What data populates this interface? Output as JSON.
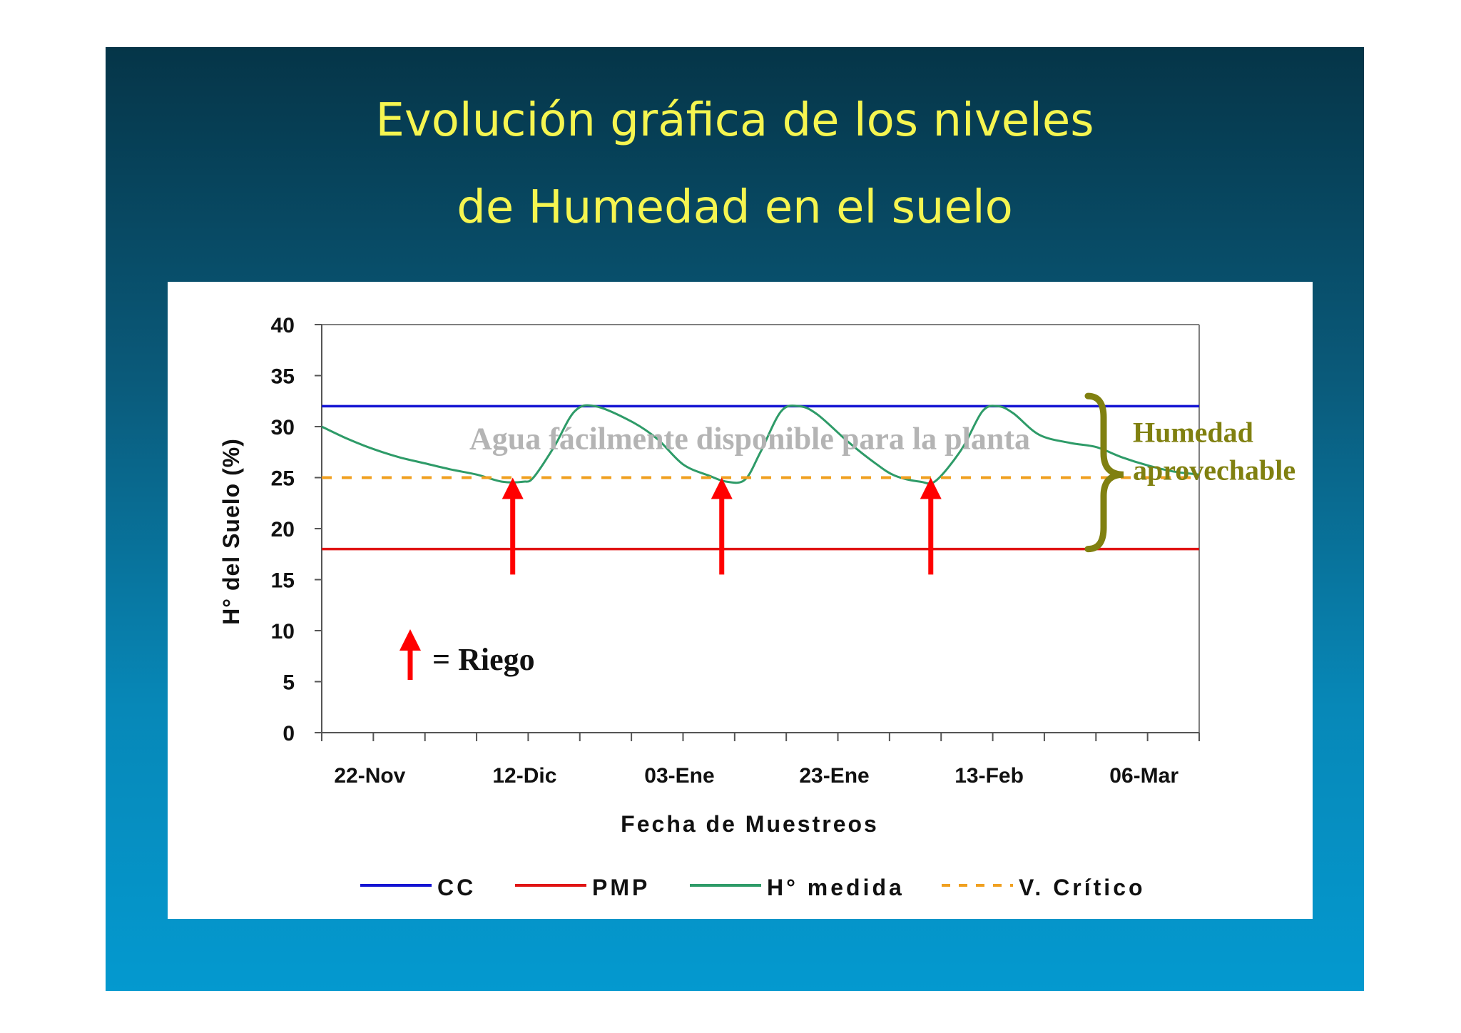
{
  "slide": {
    "title_line1": "Evolución gráfica de los niveles",
    "title_line2": "de Humedad en el suelo"
  },
  "chart_data": {
    "type": "line",
    "ylabel": "H° del Suelo (%)",
    "xlabel": "Fecha de Muestreos",
    "ylim": [
      0,
      40
    ],
    "y_ticks": [
      0,
      5,
      10,
      15,
      20,
      25,
      30,
      35,
      40
    ],
    "x_tick_labels": [
      "22-Nov",
      "12-Dic",
      "03-Ene",
      "23-Ene",
      "13-Feb",
      "06-Mar"
    ],
    "x_tick_label_index": [
      1,
      4,
      7,
      10,
      13,
      16
    ],
    "x_domain": [
      0,
      17
    ],
    "grid": false,
    "legend_position": "bottom",
    "series": [
      {
        "name": "CC",
        "color": "#1414d2",
        "style": "solid",
        "x": [
          0,
          17
        ],
        "y": [
          32,
          32
        ]
      },
      {
        "name": "PMP",
        "color": "#e01414",
        "style": "solid",
        "x": [
          0,
          17
        ],
        "y": [
          18,
          18
        ]
      },
      {
        "name": "H° medida",
        "color": "#2e9b68",
        "style": "solid",
        "x": [
          0,
          0.5,
          1,
          1.5,
          2,
          2.5,
          3,
          3.5,
          3.9,
          4.1,
          4.5,
          4.9,
          5.3,
          6,
          6.5,
          7,
          7.5,
          7.85,
          8.2,
          8.5,
          8.9,
          9.25,
          9.6,
          10.2,
          10.7,
          11.1,
          11.6,
          11.9,
          12.4,
          12.8,
          13.1,
          13.4,
          13.9,
          14.5,
          15,
          15.5,
          16,
          16.5,
          17
        ],
        "y": [
          30,
          28.8,
          27.8,
          27,
          26.4,
          25.8,
          25.3,
          24.6,
          24.6,
          25,
          28,
          31.5,
          32,
          30.5,
          28.8,
          26.3,
          25.2,
          24.6,
          24.8,
          27.5,
          31.5,
          32,
          31.2,
          28.5,
          26.5,
          25.2,
          24.6,
          24.7,
          27.8,
          31.5,
          32,
          31.3,
          29.2,
          28.4,
          28,
          27,
          26.2,
          25.6,
          25.3
        ]
      },
      {
        "name": "V. Crítico",
        "color": "#f0a020",
        "style": "dashed",
        "x": [
          0,
          17
        ],
        "y": [
          25,
          25
        ]
      }
    ],
    "annotations": {
      "zone_label": "Agua fácilmente disponible para la planta",
      "brace_label_line1": "Humedad",
      "brace_label_line2": "aprovechable",
      "riego_label": "= Riego",
      "riego_x": [
        3.7,
        7.75,
        11.8
      ],
      "riego_y_from": 15.5,
      "riego_y_to": 25,
      "brace_y_range": [
        18,
        33
      ]
    },
    "colors": {
      "annotation_gray": "#b4b4b4",
      "brace_olive": "#808010",
      "arrow_red": "#ff0000",
      "axis": "#808080"
    }
  }
}
